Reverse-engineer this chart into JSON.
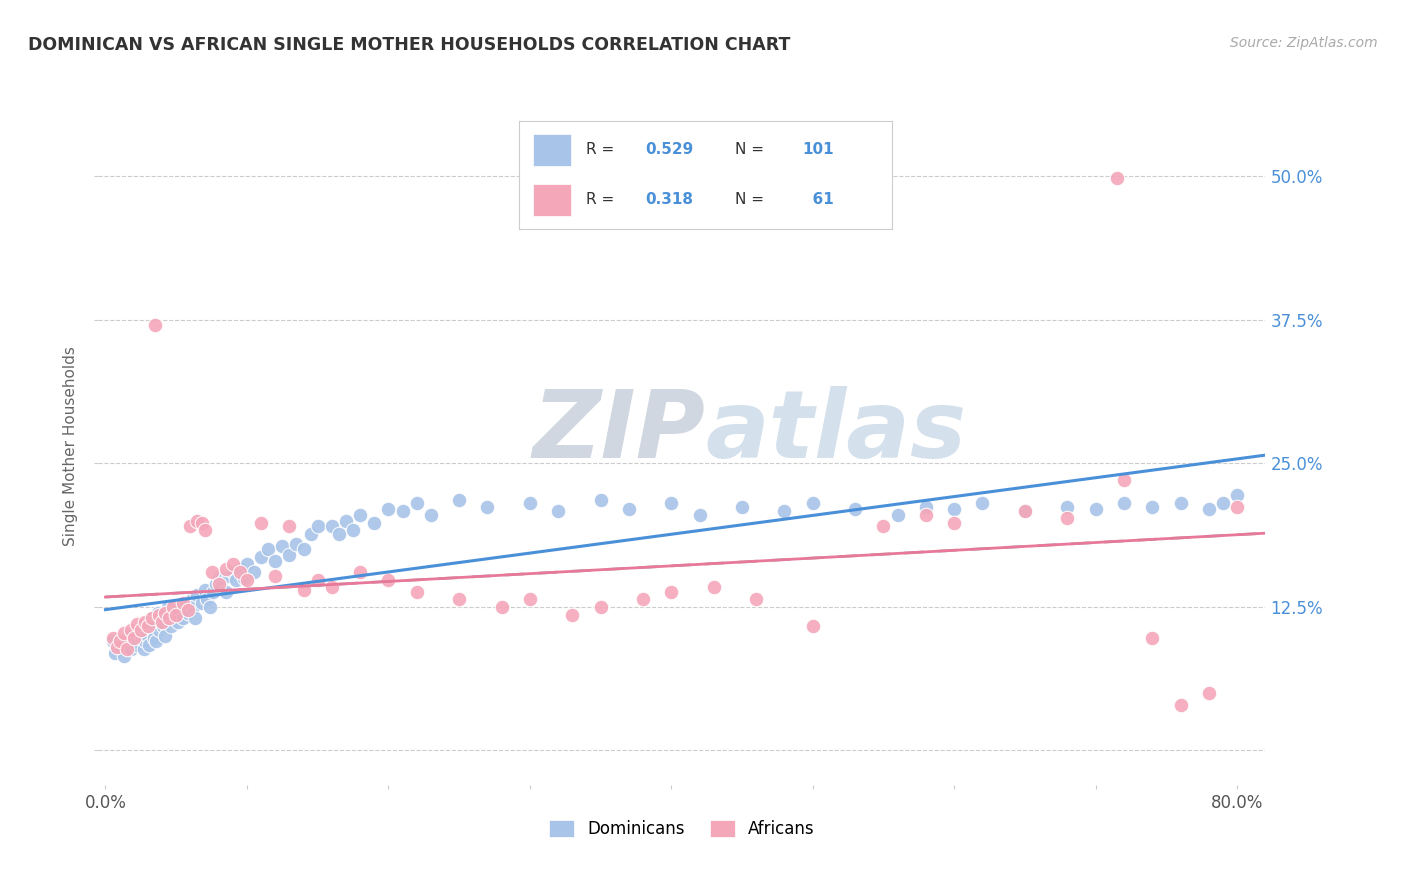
{
  "title": "DOMINICAN VS AFRICAN SINGLE MOTHER HOUSEHOLDS CORRELATION CHART",
  "source": "Source: ZipAtlas.com",
  "ylabel": "Single Mother Households",
  "dominicans_R": 0.529,
  "dominicans_N": 101,
  "africans_R": 0.318,
  "africans_N": 61,
  "dominican_color": "#a8c4e8",
  "african_color": "#f4a7b9",
  "dominican_line_color": "#4a90d9",
  "african_line_color": "#e8789a",
  "watermark_zip_color": "#c8d0dc",
  "watermark_atlas_color": "#b8cce0",
  "background_color": "#ffffff",
  "grid_color": "#cccccc",
  "title_color": "#333333",
  "source_color": "#aaaaaa",
  "stat_color": "#4a90d9",
  "xlim": [
    -0.005,
    0.82
  ],
  "ylim": [
    -0.03,
    0.56
  ],
  "ytick_positions": [
    0.0,
    0.125,
    0.25,
    0.375,
    0.5
  ],
  "ytick_labels": [
    "",
    "12.5%",
    "25.0%",
    "37.5%",
    "50.0%"
  ],
  "dom_x": [
    0.005,
    0.007,
    0.01,
    0.012,
    0.013,
    0.015,
    0.016,
    0.018,
    0.02,
    0.021,
    0.022,
    0.025,
    0.026,
    0.027,
    0.028,
    0.03,
    0.031,
    0.032,
    0.033,
    0.034,
    0.035,
    0.036,
    0.037,
    0.038,
    0.04,
    0.041,
    0.042,
    0.044,
    0.045,
    0.046,
    0.048,
    0.05,
    0.051,
    0.053,
    0.055,
    0.057,
    0.058,
    0.06,
    0.062,
    0.063,
    0.065,
    0.068,
    0.07,
    0.072,
    0.074,
    0.076,
    0.078,
    0.08,
    0.082,
    0.085,
    0.087,
    0.09,
    0.092,
    0.095,
    0.098,
    0.1,
    0.105,
    0.11,
    0.115,
    0.12,
    0.125,
    0.13,
    0.135,
    0.14,
    0.145,
    0.15,
    0.16,
    0.165,
    0.17,
    0.175,
    0.18,
    0.19,
    0.2,
    0.21,
    0.22,
    0.23,
    0.25,
    0.27,
    0.3,
    0.32,
    0.35,
    0.37,
    0.4,
    0.42,
    0.45,
    0.48,
    0.5,
    0.53,
    0.56,
    0.58,
    0.6,
    0.62,
    0.65,
    0.68,
    0.7,
    0.72,
    0.74,
    0.76,
    0.78,
    0.79,
    0.8
  ],
  "dom_y": [
    0.095,
    0.085,
    0.092,
    0.088,
    0.082,
    0.09,
    0.096,
    0.088,
    0.095,
    0.1,
    0.092,
    0.105,
    0.098,
    0.088,
    0.095,
    0.1,
    0.092,
    0.115,
    0.105,
    0.098,
    0.11,
    0.095,
    0.12,
    0.105,
    0.115,
    0.108,
    0.1,
    0.125,
    0.115,
    0.108,
    0.12,
    0.118,
    0.112,
    0.125,
    0.115,
    0.128,
    0.12,
    0.13,
    0.125,
    0.115,
    0.135,
    0.128,
    0.14,
    0.132,
    0.125,
    0.138,
    0.145,
    0.15,
    0.142,
    0.138,
    0.152,
    0.155,
    0.148,
    0.158,
    0.15,
    0.162,
    0.155,
    0.168,
    0.175,
    0.165,
    0.178,
    0.17,
    0.18,
    0.175,
    0.188,
    0.195,
    0.195,
    0.188,
    0.2,
    0.192,
    0.205,
    0.198,
    0.21,
    0.208,
    0.215,
    0.205,
    0.218,
    0.212,
    0.215,
    0.208,
    0.218,
    0.21,
    0.215,
    0.205,
    0.212,
    0.208,
    0.215,
    0.21,
    0.205,
    0.212,
    0.21,
    0.215,
    0.208,
    0.212,
    0.21,
    0.215,
    0.212,
    0.215,
    0.21,
    0.215,
    0.222
  ],
  "afr_x": [
    0.005,
    0.008,
    0.01,
    0.013,
    0.015,
    0.018,
    0.02,
    0.022,
    0.025,
    0.028,
    0.03,
    0.033,
    0.035,
    0.038,
    0.04,
    0.042,
    0.045,
    0.048,
    0.05,
    0.055,
    0.058,
    0.06,
    0.065,
    0.068,
    0.07,
    0.075,
    0.08,
    0.085,
    0.09,
    0.095,
    0.1,
    0.11,
    0.12,
    0.13,
    0.14,
    0.15,
    0.16,
    0.18,
    0.2,
    0.22,
    0.25,
    0.28,
    0.3,
    0.33,
    0.35,
    0.38,
    0.4,
    0.43,
    0.46,
    0.5,
    0.55,
    0.58,
    0.6,
    0.65,
    0.68,
    0.72,
    0.74,
    0.76,
    0.78,
    0.8,
    0.715
  ],
  "afr_y": [
    0.098,
    0.09,
    0.095,
    0.102,
    0.088,
    0.105,
    0.098,
    0.11,
    0.105,
    0.112,
    0.108,
    0.115,
    0.37,
    0.118,
    0.112,
    0.12,
    0.115,
    0.125,
    0.118,
    0.128,
    0.122,
    0.195,
    0.2,
    0.198,
    0.192,
    0.155,
    0.145,
    0.158,
    0.162,
    0.155,
    0.148,
    0.198,
    0.152,
    0.195,
    0.14,
    0.148,
    0.142,
    0.155,
    0.148,
    0.138,
    0.132,
    0.125,
    0.132,
    0.118,
    0.125,
    0.132,
    0.138,
    0.142,
    0.132,
    0.108,
    0.195,
    0.205,
    0.198,
    0.208,
    0.202,
    0.235,
    0.098,
    0.04,
    0.05,
    0.212,
    0.498
  ]
}
